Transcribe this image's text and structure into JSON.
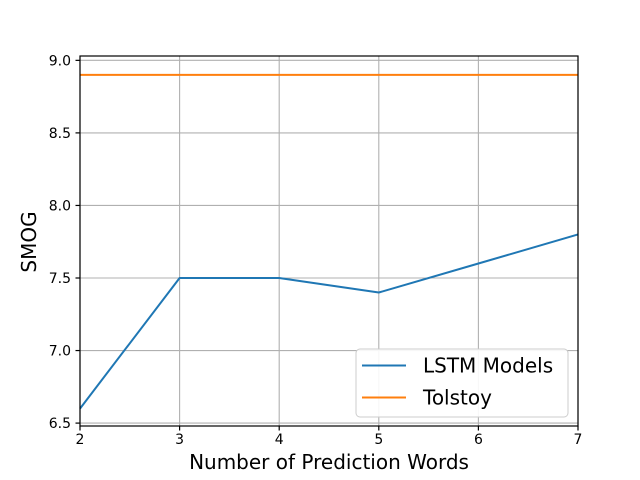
{
  "chart_data": {
    "type": "line",
    "title": "",
    "xlabel": "Number of Prediction Words",
    "ylabel": "SMOG",
    "x": [
      2,
      3,
      4,
      5,
      6,
      7
    ],
    "series": [
      {
        "name": "LSTM Models",
        "color": "#1f77b4",
        "values": [
          6.6,
          7.5,
          7.5,
          7.4,
          7.6,
          7.8
        ]
      },
      {
        "name": "Tolstoy",
        "color": "#ff7f0e",
        "values": [
          8.9,
          8.9,
          8.9,
          8.9,
          8.9,
          8.9
        ]
      }
    ],
    "xlim": [
      2,
      7
    ],
    "ylim": [
      6.48,
      9.03
    ],
    "xticks": [
      2,
      3,
      4,
      5,
      6,
      7
    ],
    "yticks": [
      6.5,
      7.0,
      7.5,
      8.0,
      8.5,
      9.0
    ],
    "xtick_format": "integer",
    "ytick_format": "one_decimal",
    "grid": true,
    "grid_color": "#b0b0b0",
    "spine_color": "#000000",
    "legend_position": "lower right",
    "legend_face_color": "#ffffff",
    "legend_edge_color": "#cccccc",
    "background_color": "#ffffff"
  }
}
